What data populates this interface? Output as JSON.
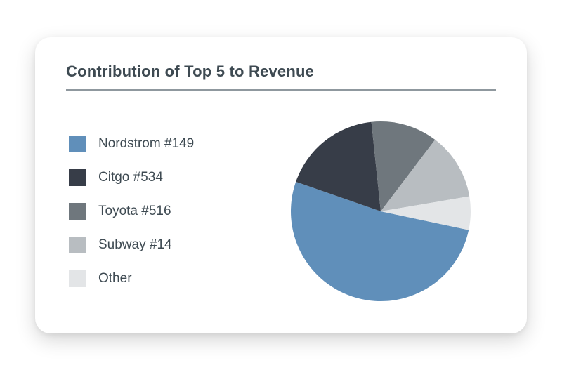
{
  "card": {
    "title": "Contribution of Top 5 to Revenue",
    "title_color": "#3e4a52",
    "title_fontsize": 22,
    "background_color": "#ffffff",
    "border_radius": 22,
    "divider_color": "#8f989e"
  },
  "chart": {
    "type": "pie",
    "radius": 128,
    "start_angle_deg": 12,
    "direction": "clockwise",
    "slices": [
      {
        "label": "Nordstrom #149",
        "value": 52,
        "color": "#608fba"
      },
      {
        "label": "Citgo #534",
        "value": 18,
        "color": "#373d48"
      },
      {
        "label": "Toyota #516",
        "value": 12,
        "color": "#6f777d"
      },
      {
        "label": "Subway #14",
        "value": 12,
        "color": "#b8bdc1"
      },
      {
        "label": "Other",
        "value": 6,
        "color": "#e3e5e7"
      }
    ],
    "label_color": "#3e4a52",
    "label_fontsize": 19,
    "legend_swatch_size": 24
  }
}
